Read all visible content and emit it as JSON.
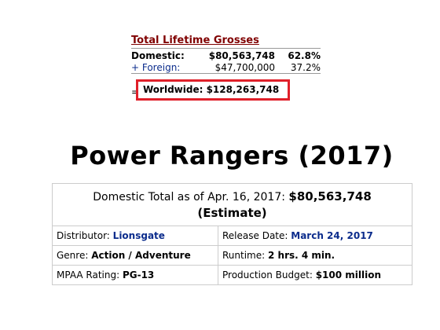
{
  "grosses": {
    "title": "Total Lifetime Grosses",
    "domestic": {
      "label": "Domestic:",
      "amount": "$80,563,748",
      "percent": "62.8%"
    },
    "foreign": {
      "label": "+ Foreign:",
      "amount": "$47,700,000",
      "percent": "37.2%"
    },
    "worldwide": {
      "prefix": "=",
      "label": "Worldwide: $128,263,748"
    },
    "highlight_color": "#e0202a"
  },
  "movie": {
    "title": "Power Rangers (2017)"
  },
  "summary": {
    "domestic_total_prefix": "Domestic Total as of Apr. 16, 2017:",
    "domestic_total_value": "$80,563,748",
    "estimate_label": "(Estimate)",
    "distributor_label": "Distributor:",
    "distributor_value": "Lionsgate",
    "release_label": "Release Date:",
    "release_value": "March 24, 2017",
    "genre_label": "Genre:",
    "genre_value": "Action / Adventure",
    "runtime_label": "Runtime:",
    "runtime_value": "2 hrs. 4 min.",
    "mpaa_label": "MPAA Rating:",
    "mpaa_value": "PG-13",
    "budget_label": "Production Budget:",
    "budget_value": "$100 million",
    "link_color": "#0b2c8c"
  }
}
